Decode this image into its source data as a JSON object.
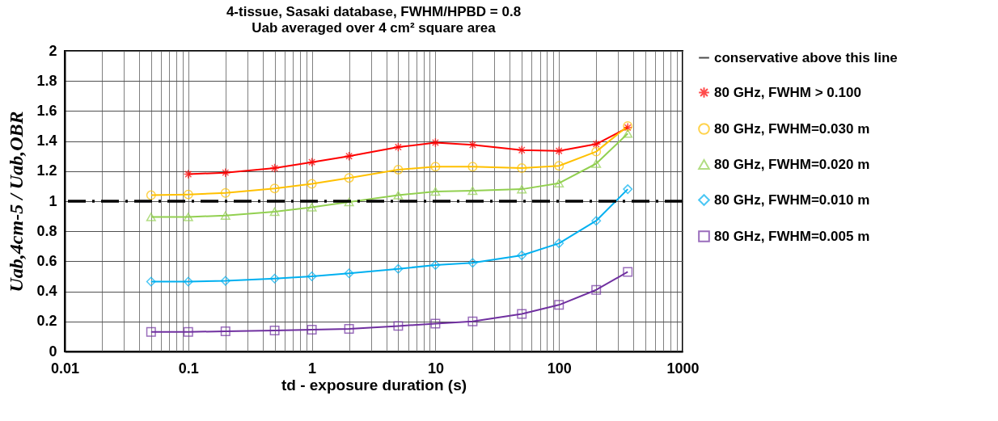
{
  "chart_data": {
    "type": "line",
    "title": "4-tissue, Sasaki database, FWHM/HPBD = 0.8",
    "subtitle": "Uab averaged over 4 cm² square area",
    "xlabel": "td - exposure duration (s)",
    "ylabel": "Uab,4cm-5 / Uab,OBR",
    "log": "x",
    "xlim": [
      0.01,
      1000
    ],
    "xticks": [
      0.01,
      {
        "value": 0.02,
        "label": null
      },
      {
        "value": 0.03,
        "label": null
      },
      {
        "value": 0.04,
        "label": null
      },
      {
        "value": 0.05,
        "label": null
      },
      {
        "value": 0.06,
        "label": null
      },
      {
        "value": 0.07,
        "label": null
      },
      {
        "value": 0.08,
        "label": null
      },
      {
        "value": 0.09,
        "label": null
      },
      0.1,
      {
        "value": 0.2,
        "label": null
      },
      {
        "value": 0.3,
        "label": null
      },
      {
        "value": 0.4,
        "label": null
      },
      {
        "value": 0.5,
        "label": null
      },
      {
        "value": 0.6,
        "label": null
      },
      {
        "value": 0.7,
        "label": null
      },
      {
        "value": 0.8,
        "label": null
      },
      {
        "value": 0.9,
        "label": null
      },
      1,
      {
        "value": 2,
        "label": null
      },
      {
        "value": 3,
        "label": null
      },
      {
        "value": 4,
        "label": null
      },
      {
        "value": 5,
        "label": null
      },
      {
        "value": 6,
        "label": null
      },
      {
        "value": 7,
        "label": null
      },
      {
        "value": 8,
        "label": null
      },
      {
        "value": 9,
        "label": null
      },
      10,
      {
        "value": 20,
        "label": null
      },
      {
        "value": 30,
        "label": null
      },
      {
        "value": 40,
        "label": null
      },
      {
        "value": 50,
        "label": null
      },
      {
        "value": 60,
        "label": null
      },
      {
        "value": 70,
        "label": null
      },
      {
        "value": 80,
        "label": null
      },
      {
        "value": 90,
        "label": null
      },
      100,
      {
        "value": 200,
        "label": null
      },
      {
        "value": 300,
        "label": null
      },
      {
        "value": 400,
        "label": null
      },
      {
        "value": 500,
        "label": null
      },
      {
        "value": 600,
        "label": null
      },
      {
        "value": 700,
        "label": null
      },
      {
        "value": 800,
        "label": null
      },
      {
        "value": 900,
        "label": null
      },
      1000
    ],
    "ylim": [
      0,
      2
    ],
    "yticks": [
      0,
      0.2,
      0.4,
      0.6,
      0.8,
      1,
      1.2,
      1.4,
      1.6,
      1.8,
      2
    ],
    "grid": true,
    "legend": "right",
    "x": [
      0.05,
      0.1,
      0.2,
      0.5,
      1,
      2,
      5,
      10,
      20,
      50,
      100,
      200,
      360
    ],
    "ref_lines": [
      {
        "axis": "y",
        "value": 1,
        "label": "conservative above this line",
        "color": "#000000",
        "line_style": "dashed"
      }
    ],
    "series": [
      {
        "name": "80 GHz, FWHM > 0.100",
        "color": "#ff0000",
        "marker": "cross",
        "x": [
          0.1,
          0.2,
          0.5,
          1,
          2,
          5,
          10,
          20,
          50,
          100,
          200,
          360
        ],
        "values": [
          1.18,
          1.19,
          1.22,
          1.26,
          1.3,
          1.36,
          1.39,
          1.375,
          1.34,
          1.335,
          1.38,
          1.49
        ]
      },
      {
        "name": "80 GHz, FWHM=0.030 m",
        "color": "#ffc000",
        "marker": "circle",
        "values": [
          1.04,
          1.045,
          1.055,
          1.085,
          1.115,
          1.155,
          1.21,
          1.23,
          1.23,
          1.22,
          1.235,
          1.33,
          1.5
        ]
      },
      {
        "name": "80 GHz, FWHM=0.020 m",
        "color": "#92d050",
        "marker": "triangle",
        "values": [
          0.895,
          0.895,
          0.905,
          0.93,
          0.96,
          0.995,
          1.04,
          1.065,
          1.07,
          1.08,
          1.12,
          1.25,
          1.45
        ]
      },
      {
        "name": "80 GHz, FWHM=0.010 m",
        "color": "#00b0f0",
        "marker": "diamond",
        "values": [
          0.465,
          0.465,
          0.47,
          0.485,
          0.5,
          0.52,
          0.55,
          0.575,
          0.59,
          0.64,
          0.72,
          0.87,
          1.08
        ]
      },
      {
        "name": "80 GHz, FWHM=0.005 m",
        "color": "#7030a0",
        "marker": "square",
        "values": [
          0.13,
          0.13,
          0.135,
          0.14,
          0.145,
          0.15,
          0.17,
          0.185,
          0.2,
          0.25,
          0.31,
          0.41,
          0.53
        ]
      }
    ]
  }
}
